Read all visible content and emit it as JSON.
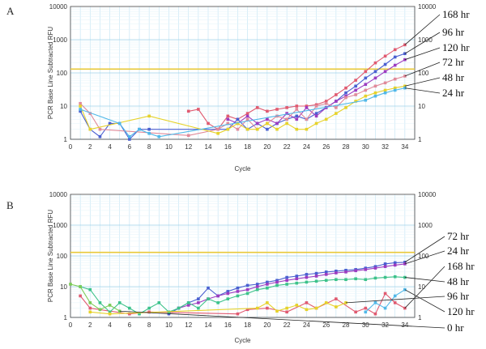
{
  "chart_data": [
    {
      "panel": "A",
      "type": "line",
      "xlabel": "Cycle",
      "ylabel": "PCR Base Line Subtracted RFU",
      "xlim": [
        0,
        35
      ],
      "ylim": [
        1,
        10000
      ],
      "yscale": "log",
      "xticks": [
        "0",
        "2",
        "4",
        "6",
        "8",
        "10",
        "12",
        "14",
        "16",
        "18",
        "20",
        "22",
        "24",
        "26",
        "28",
        "30",
        "32",
        "34"
      ],
      "yticks": [
        "1",
        "10",
        "100",
        "1000",
        "10000"
      ],
      "threshold": 130,
      "grid": true,
      "series": [
        {
          "name": "168 hr",
          "color": "#e05a70",
          "x": [
            12,
            13,
            14,
            15,
            16,
            17,
            18,
            19,
            20,
            21,
            22,
            23,
            24,
            25,
            26,
            27,
            28,
            29,
            30,
            31,
            32,
            33,
            34
          ],
          "y": [
            7,
            8,
            3,
            2,
            5,
            4,
            6,
            9,
            7,
            8,
            9,
            10,
            10,
            11,
            14,
            22,
            35,
            60,
            110,
            200,
            320,
            500,
            700
          ]
        },
        {
          "name": "96 hr",
          "color": "#4a5fd0",
          "x": [
            1,
            2,
            3,
            4,
            5,
            6,
            7,
            8,
            16,
            17,
            18,
            19,
            20,
            21,
            22,
            23,
            24,
            25,
            26,
            27,
            28,
            29,
            30,
            31,
            32,
            33,
            34
          ],
          "y": [
            7,
            2,
            1.2,
            3,
            3,
            1,
            2,
            2,
            2,
            4,
            2,
            3,
            2,
            3,
            4,
            5,
            4,
            6,
            9,
            14,
            25,
            40,
            70,
            110,
            180,
            300,
            380
          ]
        },
        {
          "name": "120 hr",
          "color": "#9c3cc0",
          "x": [
            16,
            17,
            18,
            19,
            20,
            21,
            22,
            23,
            24,
            25,
            26,
            27,
            28,
            29,
            30,
            31,
            32,
            33,
            34
          ],
          "y": [
            4,
            3,
            5,
            3,
            4,
            3,
            6,
            4,
            9,
            5,
            9,
            14,
            20,
            30,
            45,
            70,
            110,
            170,
            250
          ]
        },
        {
          "name": "72 hr",
          "color": "#e08a9a",
          "x": [
            1,
            2,
            3,
            12,
            15,
            16,
            17,
            18,
            19,
            20,
            21,
            22,
            23,
            24,
            25,
            26,
            27,
            28,
            29,
            30,
            31,
            32,
            33,
            34
          ],
          "y": [
            12,
            6,
            2,
            1.3,
            2,
            3,
            2,
            4,
            2,
            3,
            5,
            4,
            8,
            4,
            10,
            12,
            9,
            18,
            22,
            30,
            40,
            50,
            65,
            80
          ]
        },
        {
          "name": "48 hr",
          "color": "#e6d22a",
          "x": [
            1,
            2,
            8,
            15,
            16,
            17,
            18,
            19,
            20,
            21,
            22,
            23,
            24,
            25,
            26,
            27,
            28,
            29,
            30,
            31,
            32,
            33,
            34
          ],
          "y": [
            10,
            2,
            5,
            1.5,
            2,
            3,
            2,
            2,
            3,
            2,
            3,
            2,
            2,
            3,
            4,
            6,
            9,
            14,
            20,
            25,
            30,
            35,
            40
          ]
        },
        {
          "name": "24 hr",
          "color": "#50b8e8",
          "x": [
            1,
            5,
            6,
            7,
            8,
            9,
            30,
            31,
            32,
            33,
            34
          ],
          "y": [
            8,
            3,
            1.2,
            2,
            1.5,
            1.2,
            15,
            20,
            25,
            30,
            35
          ]
        }
      ],
      "labels_order": [
        "168 hr",
        "96 hr",
        "120 hr",
        "72 hr",
        "48 hr",
        "24 hr"
      ]
    },
    {
      "panel": "B",
      "type": "line",
      "xlabel": "Cycle",
      "ylabel": "PCR Base Line Subtracted RFU",
      "xlim": [
        0,
        35
      ],
      "ylim": [
        1,
        10000
      ],
      "yscale": "log",
      "xticks": [
        "0",
        "2",
        "4",
        "6",
        "8",
        "10",
        "12",
        "14",
        "16",
        "18",
        "20",
        "22",
        "24",
        "26",
        "28",
        "30",
        "32",
        "34"
      ],
      "yticks": [
        "1",
        "10",
        "100",
        "1000",
        "10000"
      ],
      "threshold": 130,
      "grid": true,
      "series": [
        {
          "name": "72 hr",
          "color": "#4a5fd0",
          "x": [
            10,
            11,
            12,
            13,
            14,
            15,
            16,
            17,
            18,
            19,
            20,
            21,
            22,
            23,
            24,
            25,
            26,
            27,
            28,
            29,
            30,
            31,
            32,
            33,
            34
          ],
          "y": [
            1.3,
            2,
            3,
            4,
            9,
            5,
            7,
            9,
            11,
            12,
            14,
            16,
            20,
            22,
            25,
            27,
            30,
            32,
            34,
            36,
            40,
            45,
            55,
            60,
            62
          ]
        },
        {
          "name": "24 hr",
          "color": "#9c3cc0",
          "x": [
            11,
            12,
            13,
            14,
            15,
            16,
            17,
            18,
            19,
            20,
            21,
            22,
            23,
            24,
            25,
            26,
            27,
            28,
            29,
            30,
            31,
            32,
            33,
            34
          ],
          "y": [
            2,
            2.5,
            3,
            4,
            5,
            6,
            7,
            8,
            10,
            12,
            14,
            16,
            18,
            20,
            22,
            25,
            28,
            30,
            33,
            36,
            40,
            45,
            50,
            55
          ]
        },
        {
          "name": "168 hr",
          "color": "#e05a70",
          "x": [
            1,
            2,
            6,
            8,
            17,
            18,
            20,
            22,
            24,
            25,
            27,
            29,
            30,
            31,
            32,
            33,
            34
          ],
          "y": [
            5,
            2,
            1.3,
            1.5,
            1.3,
            1.8,
            2,
            1.5,
            3,
            2,
            4,
            1.5,
            2,
            1.3,
            6,
            3,
            2
          ]
        },
        {
          "name": "48 hr",
          "color": "#3cc28a",
          "x": [
            1,
            2,
            3,
            4,
            5,
            6,
            7,
            8,
            9,
            10,
            11,
            12,
            13,
            14,
            15,
            16,
            17,
            18,
            19,
            20,
            21,
            22,
            23,
            24,
            25,
            26,
            27,
            28,
            29,
            30,
            31,
            32,
            33,
            34
          ],
          "y": [
            10,
            8,
            3,
            1.5,
            3,
            2,
            1.3,
            2,
            3,
            1.5,
            2,
            3,
            2,
            4,
            3,
            4,
            5,
            6,
            8,
            9,
            11,
            12,
            13,
            14,
            15,
            16,
            17,
            17,
            18,
            17,
            19,
            20,
            21,
            20
          ]
        },
        {
          "name": "96 hr",
          "color": "#e6d22a",
          "x": [
            2,
            4,
            19,
            20,
            21,
            22,
            23,
            24,
            25,
            26,
            27,
            28
          ],
          "y": [
            1.5,
            1.3,
            2,
            3,
            1.6,
            2,
            2.5,
            1.8,
            2,
            3,
            2.2,
            3
          ]
        },
        {
          "name": "120 hr",
          "color": "#50b8e8",
          "x": [
            30,
            31,
            32,
            33,
            34
          ],
          "y": [
            1.5,
            3,
            2,
            5,
            8
          ]
        },
        {
          "name": "0 hr",
          "color": "#7acb55",
          "x": [
            0,
            1,
            2,
            3,
            4,
            5
          ],
          "y": [
            12,
            10,
            3,
            1.8,
            2.5,
            1.6
          ]
        }
      ],
      "labels_order": [
        "72 hr",
        "24 hr",
        "168 hr",
        "48 hr",
        "96 hr",
        "120 hr",
        "0 hr"
      ]
    }
  ]
}
